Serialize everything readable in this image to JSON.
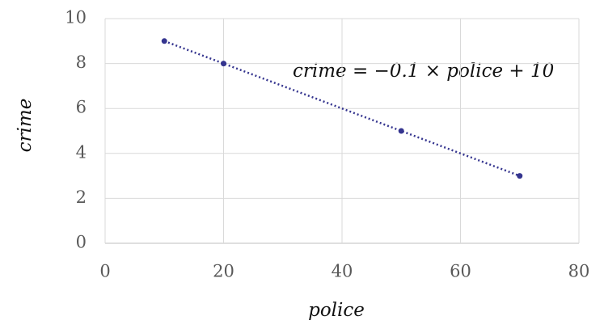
{
  "chart_data": {
    "type": "line",
    "x": [
      10,
      20,
      50,
      70
    ],
    "values": [
      9,
      8,
      5,
      3
    ],
    "color": "#35358f",
    "xlabel": "police",
    "ylabel": "crime",
    "annotation": "crime = −0.1 × police + 10",
    "xlim": [
      0,
      80
    ],
    "xticks": [
      0,
      20,
      40,
      60,
      80
    ],
    "ylim": [
      0,
      10
    ],
    "yticks": [
      0,
      2,
      4,
      6,
      8,
      10
    ],
    "grid": true
  }
}
